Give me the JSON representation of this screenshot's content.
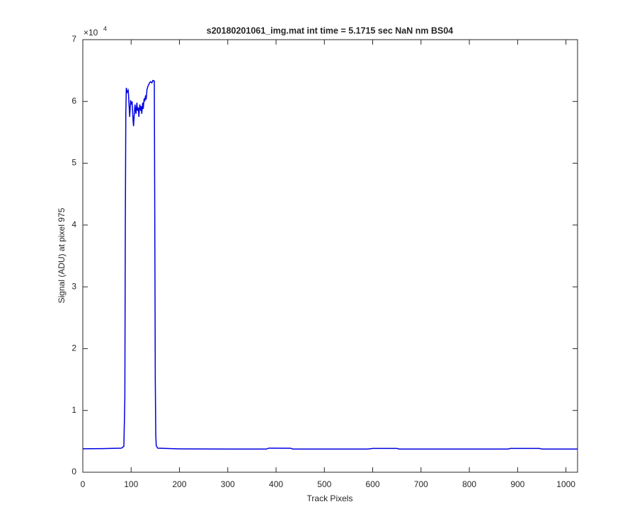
{
  "chart_data": {
    "type": "line",
    "title": "s20180201061_img.mat int time = 5.1715 sec  NaN nm BS04",
    "x_label": "Track Pixels",
    "y_label": "Signal (ADU) at pixel 975",
    "y_exponent": {
      "base": "×10",
      "power": "4"
    },
    "x": [
      0,
      40,
      80,
      85,
      87,
      88,
      89,
      90,
      92,
      94,
      95,
      97,
      99,
      100,
      102,
      104,
      105,
      107,
      108,
      110,
      112,
      113,
      115,
      116,
      118,
      120,
      121,
      122,
      124,
      125,
      127,
      128,
      130,
      131,
      133,
      135,
      137,
      138,
      140,
      143,
      145,
      148,
      149,
      150,
      151,
      152,
      155,
      200,
      300,
      380,
      385,
      430,
      435,
      590,
      600,
      650,
      655,
      880,
      885,
      945,
      950,
      1024
    ],
    "series": [
      {
        "name": "Signal",
        "color": "#0000e0",
        "values": [
          3800,
          3820,
          3900,
          4200,
          12000,
          40000,
          58000,
          62200,
          61500,
          61800,
          60500,
          57500,
          60200,
          59500,
          60000,
          57000,
          56000,
          58500,
          59500,
          58000,
          59800,
          58500,
          59000,
          57500,
          59500,
          58500,
          59200,
          58000,
          59800,
          58800,
          60500,
          60000,
          61000,
          60300,
          62000,
          62500,
          62800,
          63000,
          63200,
          63000,
          63400,
          63300,
          40000,
          15000,
          6000,
          4300,
          3900,
          3780,
          3750,
          3750,
          3900,
          3880,
          3750,
          3750,
          3850,
          3850,
          3750,
          3750,
          3850,
          3850,
          3750,
          3750
        ]
      }
    ],
    "xlim": [
      0,
      1024
    ],
    "ylim": [
      0,
      70000
    ],
    "xticks": [
      0,
      100,
      200,
      300,
      400,
      500,
      600,
      700,
      800,
      900,
      1000
    ],
    "yticks": [
      0,
      {
        "value": 10000,
        "label": "1"
      },
      {
        "value": 20000,
        "label": "2"
      },
      {
        "value": 30000,
        "label": "3"
      },
      {
        "value": 40000,
        "label": "4"
      },
      {
        "value": 50000,
        "label": "5"
      },
      {
        "value": 60000,
        "label": "6"
      },
      {
        "value": 70000,
        "label": "7"
      }
    ],
    "grid": false
  }
}
